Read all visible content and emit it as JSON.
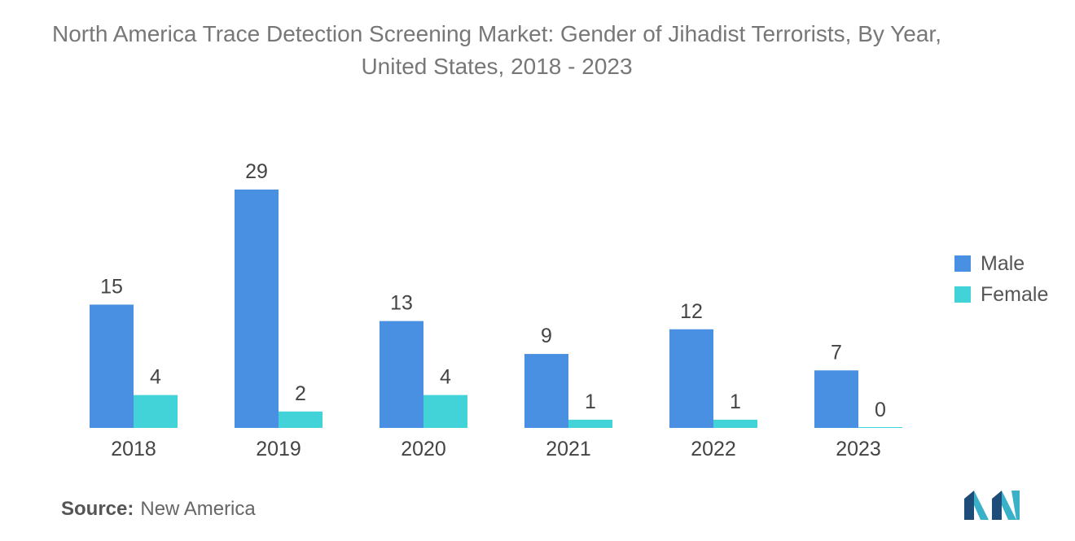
{
  "title": "North America Trace Detection Screening Market: Gender of Jihadist Terrorists, By Year, United States, 2018 - 2023",
  "source_label": "Source:",
  "source_value": "New America",
  "colors": {
    "male": "#4a90e2",
    "female": "#42d3d8",
    "logo_dark": "#1e4d7a",
    "logo_light": "#3bb0c9"
  },
  "chart_data": {
    "type": "bar",
    "categories": [
      "2018",
      "2019",
      "2020",
      "2021",
      "2022",
      "2023"
    ],
    "series": [
      {
        "name": "Male",
        "values": [
          15,
          29,
          13,
          9,
          12,
          7
        ]
      },
      {
        "name": "Female",
        "values": [
          4,
          2,
          4,
          1,
          1,
          0
        ]
      }
    ],
    "ylim": [
      0,
      29
    ],
    "grid": false,
    "legend_position": "right"
  }
}
